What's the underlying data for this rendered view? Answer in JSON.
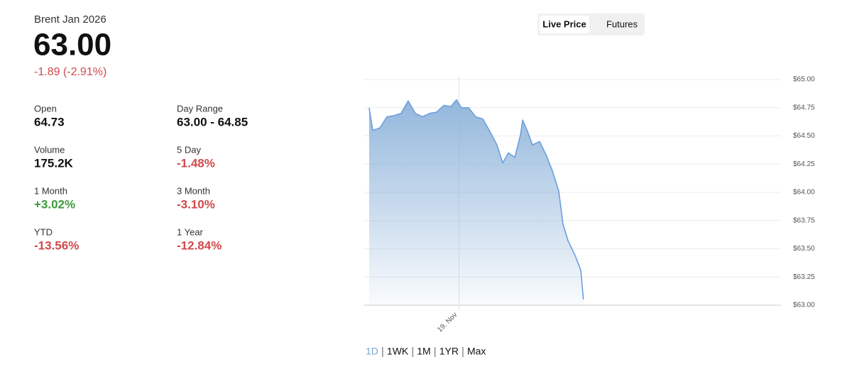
{
  "header": {
    "symbol": "Brent Jan 2026",
    "price": "63.00",
    "change": "-1.89 (-2.91%)"
  },
  "stats": [
    {
      "label": "Open",
      "value": "64.73"
    },
    {
      "label": "Day Range",
      "value": "63.00 - 64.85"
    },
    {
      "label": "Volume",
      "value": "175.2K"
    },
    {
      "label": "5 Day",
      "value": "-1.48%"
    },
    {
      "label": "1 Month",
      "value": "+3.02%"
    },
    {
      "label": "3 Month",
      "value": "-3.10%"
    },
    {
      "label": "YTD",
      "value": "-13.56%"
    },
    {
      "label": "1 Year",
      "value": "-12.84%"
    }
  ],
  "toggle": [
    "Live Price",
    "Futures"
  ],
  "ranges": [
    "1D",
    "1WK",
    "1M",
    "1YR",
    "Max"
  ],
  "chart_data": {
    "type": "area",
    "color": "#6b9fdc",
    "x": [
      0.26,
      0.45,
      0.82,
      1.2,
      1.57,
      1.95,
      2.32,
      2.7,
      3.07,
      3.45,
      3.82,
      4.2,
      4.57,
      4.87,
      5.13,
      5.51,
      5.88,
      6.26,
      6.63,
      7.01,
      7.31,
      7.61,
      7.95,
      8.25,
      8.36,
      8.62,
      8.88,
      9.26,
      9.63,
      9.93,
      10.27,
      10.49,
      10.76,
      11.13,
      11.43,
      11.57
    ],
    "values": [
      64.75,
      64.55,
      64.57,
      64.67,
      64.68,
      64.7,
      64.81,
      64.7,
      64.67,
      64.7,
      64.71,
      64.77,
      64.76,
      64.82,
      64.75,
      64.75,
      64.67,
      64.65,
      64.54,
      64.42,
      64.26,
      64.35,
      64.31,
      64.51,
      64.64,
      64.54,
      64.42,
      64.45,
      64.32,
      64.19,
      64.01,
      63.72,
      63.57,
      63.44,
      63.31,
      63.05
    ],
    "xlim": [
      0,
      22
    ],
    "xticks": [
      {
        "value": 5,
        "label": "19. Nov"
      }
    ],
    "ylim": [
      63,
      65
    ],
    "yticks": [
      {
        "value": 63,
        "label": "$63.00"
      },
      {
        "value": 63.25,
        "label": "$63.25"
      },
      {
        "value": 63.5,
        "label": "$63.50"
      },
      {
        "value": 63.75,
        "label": "$63.75"
      },
      {
        "value": 64,
        "label": "$64.00"
      },
      {
        "value": 64.25,
        "label": "$64.25"
      },
      {
        "value": 64.5,
        "label": "$64.50"
      },
      {
        "value": 64.75,
        "label": "$64.75"
      },
      {
        "value": 65,
        "label": "$65.00"
      }
    ],
    "grid": true
  }
}
